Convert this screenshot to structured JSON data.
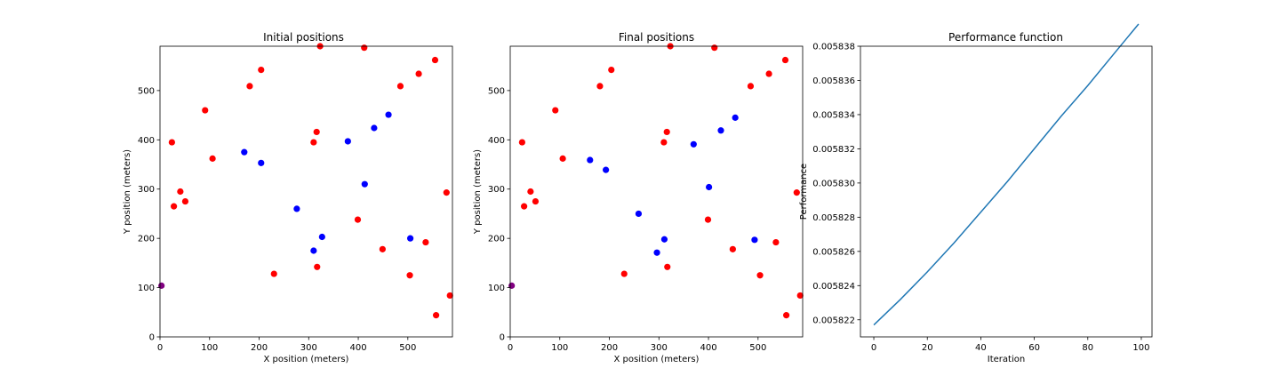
{
  "colors": {
    "sensor": "#0000ff",
    "target": "#ff0000",
    "base": "#800080",
    "line": "#1f77b4",
    "axes": "#000000",
    "background": "#ffffff"
  },
  "chart_data": [
    {
      "type": "scatter",
      "title": "Initial positions",
      "xlabel": "X position (meters)",
      "ylabel": "Y position (meters)",
      "xlim": [
        0,
        590
      ],
      "ylim": [
        0,
        590
      ],
      "xticks": [
        0,
        100,
        200,
        300,
        400,
        500
      ],
      "yticks": [
        0,
        100,
        200,
        300,
        400,
        500
      ],
      "grid": false,
      "series": [
        {
          "color": "#ff0000",
          "points": [
            [
              24,
              395
            ],
            [
              28,
              265
            ],
            [
              41,
              295
            ],
            [
              51,
              275
            ],
            [
              91,
              460
            ],
            [
              106,
              362
            ],
            [
              181,
              509
            ],
            [
              204,
              542
            ],
            [
              230,
              128
            ],
            [
              310,
              395
            ],
            [
              316,
              416
            ],
            [
              317,
              142
            ],
            [
              323,
              590
            ],
            [
              399,
              238
            ],
            [
              412,
              587
            ],
            [
              449,
              178
            ],
            [
              485,
              509
            ],
            [
              504,
              125
            ],
            [
              522,
              534
            ],
            [
              536,
              192
            ],
            [
              555,
              562
            ],
            [
              557,
              44
            ],
            [
              578,
              293
            ],
            [
              585,
              84
            ]
          ]
        },
        {
          "color": "#0000ff",
          "points": [
            [
              170,
              375
            ],
            [
              204,
              353
            ],
            [
              276,
              260
            ],
            [
              310,
              175
            ],
            [
              327,
              203
            ],
            [
              379,
              397
            ],
            [
              413,
              310
            ],
            [
              432,
              424
            ],
            [
              461,
              451
            ],
            [
              505,
              200
            ]
          ]
        },
        {
          "color": "#800080",
          "points": [
            [
              3,
              104
            ]
          ]
        }
      ]
    },
    {
      "type": "scatter",
      "title": "Final positions",
      "xlabel": "X position (meters)",
      "ylabel": "Y position (meters)",
      "xlim": [
        0,
        590
      ],
      "ylim": [
        0,
        590
      ],
      "xticks": [
        0,
        100,
        200,
        300,
        400,
        500
      ],
      "yticks": [
        0,
        100,
        200,
        300,
        400,
        500
      ],
      "grid": false,
      "series": [
        {
          "color": "#ff0000",
          "points": [
            [
              24,
              395
            ],
            [
              28,
              265
            ],
            [
              41,
              295
            ],
            [
              51,
              275
            ],
            [
              91,
              460
            ],
            [
              106,
              362
            ],
            [
              181,
              509
            ],
            [
              204,
              542
            ],
            [
              230,
              128
            ],
            [
              310,
              395
            ],
            [
              316,
              416
            ],
            [
              317,
              142
            ],
            [
              323,
              590
            ],
            [
              399,
              238
            ],
            [
              412,
              587
            ],
            [
              449,
              178
            ],
            [
              485,
              509
            ],
            [
              504,
              125
            ],
            [
              522,
              534
            ],
            [
              536,
              192
            ],
            [
              555,
              562
            ],
            [
              557,
              44
            ],
            [
              578,
              293
            ],
            [
              585,
              84
            ]
          ]
        },
        {
          "color": "#0000ff",
          "points": [
            [
              161,
              359
            ],
            [
              193,
              339
            ],
            [
              259,
              250
            ],
            [
              296,
              171
            ],
            [
              311,
              198
            ],
            [
              370,
              391
            ],
            [
              401,
              304
            ],
            [
              425,
              419
            ],
            [
              454,
              445
            ],
            [
              493,
              197
            ]
          ]
        },
        {
          "color": "#800080",
          "points": [
            [
              3,
              104
            ]
          ]
        }
      ]
    },
    {
      "type": "line",
      "title": "Performance function",
      "xlabel": "Iteration",
      "ylabel": "Performance",
      "xlim": [
        -5,
        104
      ],
      "ylim": [
        0.005821,
        0.005838
      ],
      "xticks": [
        0,
        20,
        40,
        60,
        80,
        100
      ],
      "yticks": [
        "0.005822",
        "0.005824",
        "0.005826",
        "0.005828",
        "0.005830",
        "0.005832",
        "0.005834",
        "0.005836",
        "0.005838"
      ],
      "grid": false,
      "series": [
        {
          "color": "#1f77b4",
          "x": [
            0,
            10,
            20,
            30,
            40,
            50,
            60,
            70,
            80,
            90,
            99
          ],
          "y": [
            0.0058217,
            0.0058232,
            0.0058248,
            0.0058265,
            0.0058283,
            0.0058301,
            0.005832,
            0.0058339,
            0.0058357,
            0.0058376,
            0.0058393
          ]
        }
      ]
    }
  ]
}
